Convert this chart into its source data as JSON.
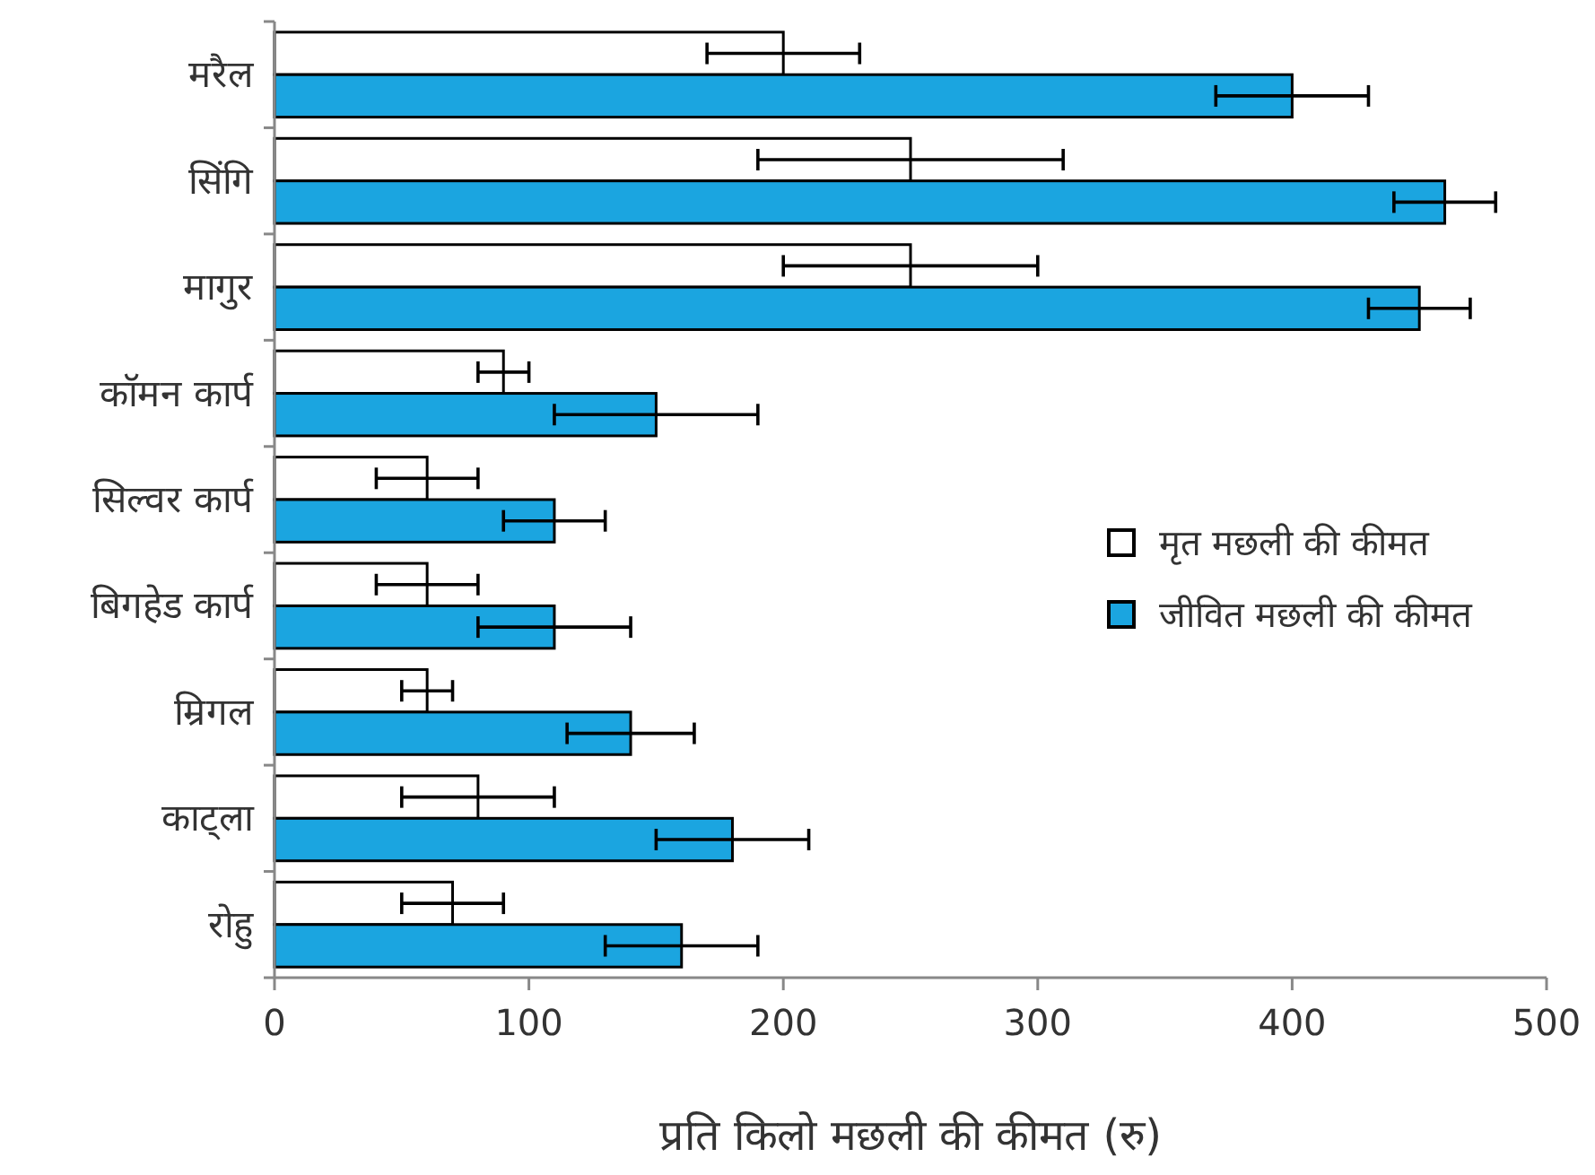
{
  "chart_data": {
    "type": "bar",
    "orientation": "horizontal",
    "xlabel": "प्रति किलो मछली की कीमत (रु)",
    "categories": [
      "मरैल",
      "सिंगि",
      "मागुर",
      "कॉमन कार्प",
      "सिल्वर कार्प",
      "बिगहेड कार्प",
      "म्रिगल",
      "काट्ला",
      "रोहु"
    ],
    "series": [
      {
        "name": "मृत मछली की कीमत",
        "color": "#ffffff",
        "values": [
          200,
          250,
          250,
          90,
          60,
          60,
          60,
          80,
          70
        ],
        "errors": [
          30,
          60,
          50,
          10,
          20,
          20,
          10,
          30,
          20
        ]
      },
      {
        "name": "जीवित मछली की कीमत",
        "color": "#1ba5e0",
        "values": [
          400,
          460,
          450,
          150,
          110,
          110,
          140,
          180,
          160
        ],
        "errors": [
          30,
          20,
          20,
          40,
          20,
          30,
          25,
          30,
          30
        ]
      }
    ],
    "xlim": [
      0,
      500
    ],
    "xticks": [
      0,
      100,
      200,
      300,
      400,
      500
    ],
    "grid": false,
    "legend": "right"
  }
}
